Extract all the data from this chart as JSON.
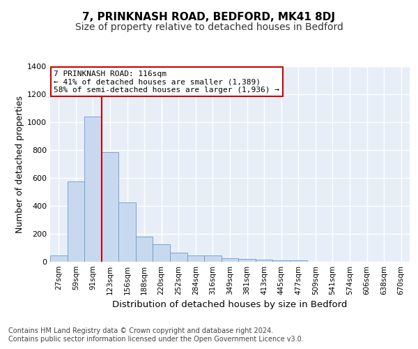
{
  "title": "7, PRINKNASH ROAD, BEDFORD, MK41 8DJ",
  "subtitle": "Size of property relative to detached houses in Bedford",
  "xlabel": "Distribution of detached houses by size in Bedford",
  "ylabel": "Number of detached properties",
  "bar_labels": [
    "27sqm",
    "59sqm",
    "91sqm",
    "123sqm",
    "156sqm",
    "188sqm",
    "220sqm",
    "252sqm",
    "284sqm",
    "316sqm",
    "349sqm",
    "381sqm",
    "413sqm",
    "445sqm",
    "477sqm",
    "509sqm",
    "541sqm",
    "574sqm",
    "606sqm",
    "638sqm",
    "670sqm"
  ],
  "bar_values": [
    47,
    575,
    1040,
    785,
    425,
    180,
    125,
    65,
    45,
    47,
    25,
    22,
    15,
    10,
    12,
    0,
    0,
    0,
    0,
    0,
    0
  ],
  "bar_color": "#c8d9ef",
  "bar_edgecolor": "#6699cc",
  "vline_color": "#cc0000",
  "vline_x_index": 2.5,
  "annotation_text": "7 PRINKNASH ROAD: 116sqm\n← 41% of detached houses are smaller (1,389)\n58% of semi-detached houses are larger (1,936) →",
  "annotation_box_facecolor": "#ffffff",
  "annotation_box_edgecolor": "#cc0000",
  "annotation_fontsize": 8,
  "ylim": [
    0,
    1400
  ],
  "yticks": [
    0,
    200,
    400,
    600,
    800,
    1000,
    1200,
    1400
  ],
  "background_color": "#e8eef8",
  "grid_color": "#ffffff",
  "title_fontsize": 11,
  "subtitle_fontsize": 10,
  "xlabel_fontsize": 9.5,
  "ylabel_fontsize": 9,
  "tick_fontsize": 7.5,
  "footer_text": "Contains HM Land Registry data © Crown copyright and database right 2024.\nContains public sector information licensed under the Open Government Licence v3.0.",
  "footer_fontsize": 7
}
